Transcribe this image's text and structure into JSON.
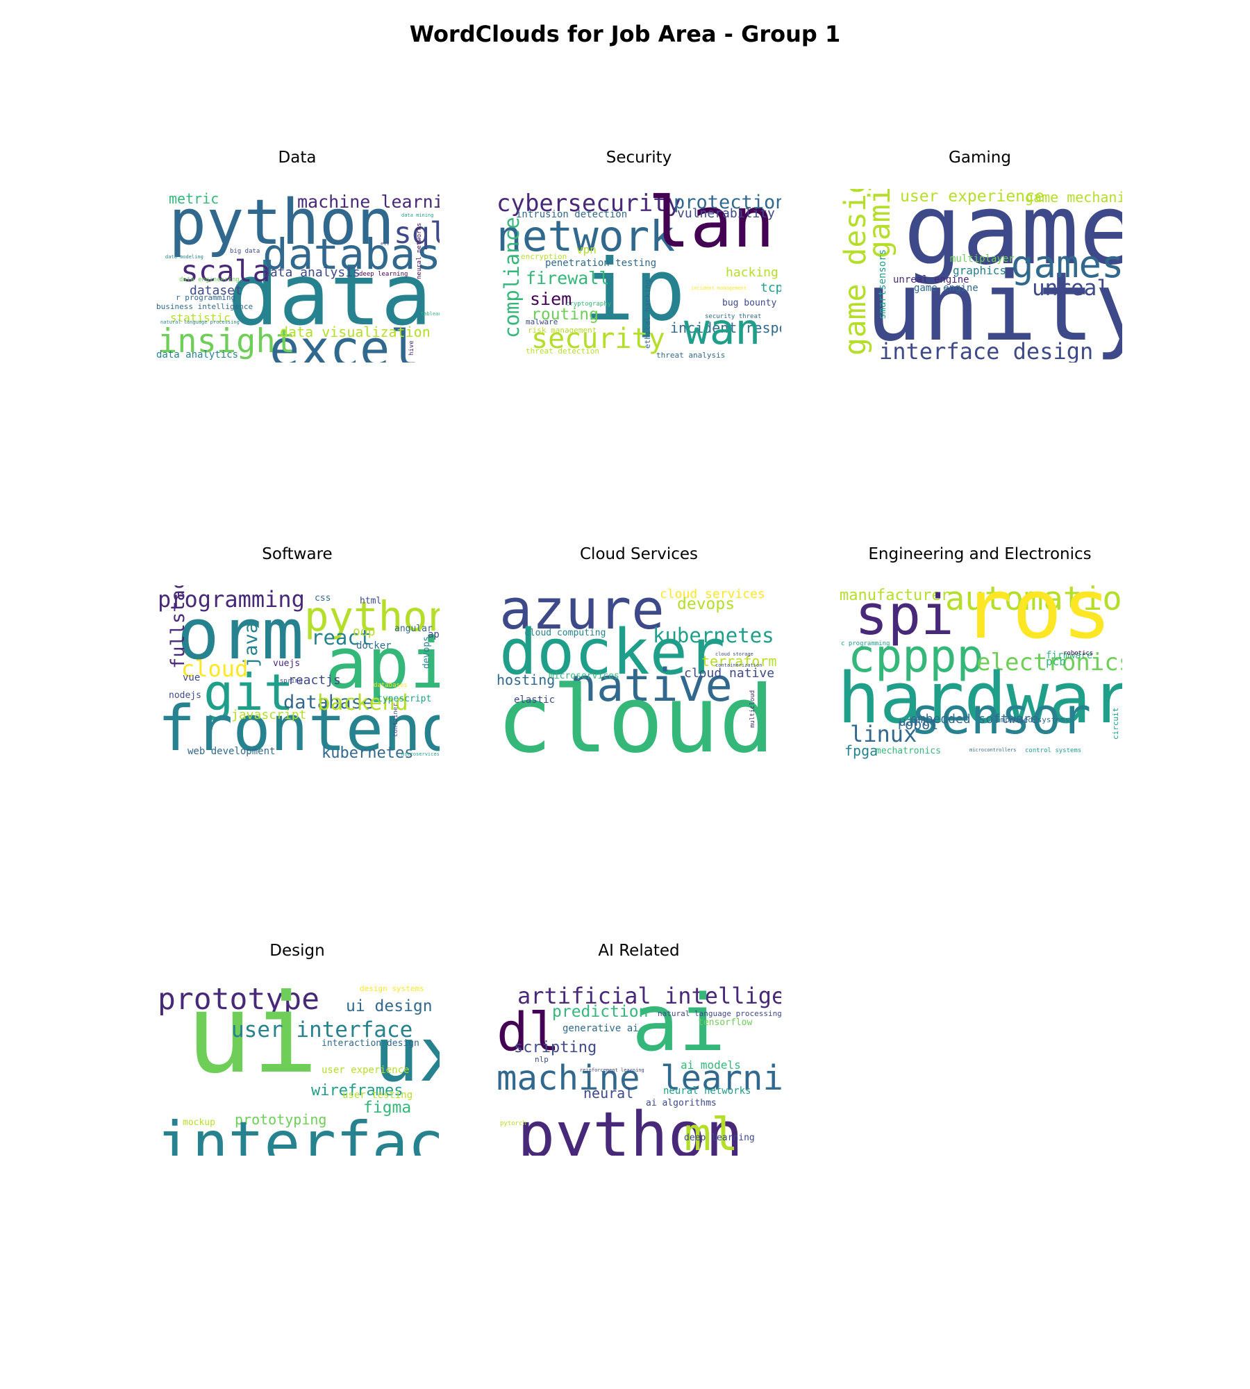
{
  "figure": {
    "title": "WordClouds for Job Area - Group 1"
  },
  "colors": {
    "dark_purple": "#440154",
    "purple": "#482878",
    "indigo": "#3e4989",
    "blue": "#31688e",
    "teal": "#26828e",
    "green_teal": "#1f9e89",
    "green": "#35b779",
    "light_green": "#6ece58",
    "lime": "#b5de2b",
    "yellow": "#fde725"
  },
  "chart_data": [
    {
      "type": "wordcloud",
      "title": "Data",
      "words": [
        {
          "text": "python",
          "color": "#31688e",
          "rel": 0.5
        },
        {
          "text": "data",
          "color": "#26828e",
          "rel": 0.68
        },
        {
          "text": "database",
          "color": "#31688e",
          "rel": 0.34
        },
        {
          "text": "excel",
          "color": "#31688e",
          "rel": 0.4
        },
        {
          "text": "insight",
          "color": "#6ece58",
          "rel": 0.26
        },
        {
          "text": "scala",
          "color": "#482878",
          "rel": 0.24
        },
        {
          "text": "sql",
          "color": "#3e4989",
          "rel": 0.24
        },
        {
          "text": "machine learning",
          "color": "#482878",
          "rel": 0.14
        },
        {
          "text": "metric",
          "color": "#35b779",
          "rel": 0.11
        },
        {
          "text": "data analysis",
          "color": "#3e4989",
          "rel": 0.1
        },
        {
          "text": "dataset",
          "color": "#3e4989",
          "rel": 0.1
        },
        {
          "text": "statistic",
          "color": "#b5de2b",
          "rel": 0.09
        },
        {
          "text": "data visualization",
          "color": "#b5de2b",
          "rel": 0.11
        },
        {
          "text": "business intelligence",
          "color": "#31688e",
          "rel": 0.06
        },
        {
          "text": "data analytics",
          "color": "#26828e",
          "rel": 0.08
        },
        {
          "text": "r programming",
          "color": "#31688e",
          "rel": 0.06
        },
        {
          "text": "big data",
          "color": "#3e4989",
          "rel": 0.05
        },
        {
          "text": "deep learning",
          "color": "#440154",
          "rel": 0.05
        },
        {
          "text": "data engineering",
          "color": "#6ece58",
          "rel": 0.05
        },
        {
          "text": "data modeling",
          "color": "#26828e",
          "rel": 0.04
        },
        {
          "text": "natural language processing",
          "color": "#26828e",
          "rel": 0.04
        },
        {
          "text": "neural networks",
          "color": "#440154",
          "rel": 0.05
        },
        {
          "text": "data mining",
          "color": "#1f9e89",
          "rel": 0.04
        },
        {
          "text": "hive",
          "color": "#482878",
          "rel": 0.05
        },
        {
          "text": "tableau",
          "color": "#35b779",
          "rel": 0.04
        },
        {
          "text": "etl",
          "color": "#3e4989",
          "rel": 0.04
        }
      ]
    },
    {
      "type": "wordcloud",
      "title": "Security",
      "words": [
        {
          "text": "cybersecurity",
          "color": "#482878",
          "rel": 0.19
        },
        {
          "text": "network",
          "color": "#31688e",
          "rel": 0.34
        },
        {
          "text": "lan",
          "color": "#440154",
          "rel": 0.56
        },
        {
          "text": "ip",
          "color": "#26828e",
          "rel": 0.68
        },
        {
          "text": "protection",
          "color": "#31688e",
          "rel": 0.15
        },
        {
          "text": "vulnerability",
          "color": "#3e4989",
          "rel": 0.1
        },
        {
          "text": "intrusion detection",
          "color": "#31688e",
          "rel": 0.08
        },
        {
          "text": "compliance",
          "color": "#35b779",
          "rel": 0.16
        },
        {
          "text": "firewall",
          "color": "#35b779",
          "rel": 0.14
        },
        {
          "text": "penetration testing",
          "color": "#31688e",
          "rel": 0.08
        },
        {
          "text": "encryption",
          "color": "#b5de2b",
          "rel": 0.06
        },
        {
          "text": "vpn",
          "color": "#b5de2b",
          "rel": 0.09
        },
        {
          "text": "hacking",
          "color": "#b5de2b",
          "rel": 0.1
        },
        {
          "text": "tcp",
          "color": "#1f9e89",
          "rel": 0.1
        },
        {
          "text": "siem",
          "color": "#440154",
          "rel": 0.14
        },
        {
          "text": "routing",
          "color": "#6ece58",
          "rel": 0.13
        },
        {
          "text": "malware",
          "color": "#3e4989",
          "rel": 0.06
        },
        {
          "text": "risk management",
          "color": "#b5de2b",
          "rel": 0.06
        },
        {
          "text": "security",
          "color": "#b5de2b",
          "rel": 0.22
        },
        {
          "text": "threat detection",
          "color": "#b5de2b",
          "rel": 0.06
        },
        {
          "text": "cryptography",
          "color": "#35b779",
          "rel": 0.05
        },
        {
          "text": "ethical hacking",
          "color": "#31688e",
          "rel": 0.06
        },
        {
          "text": "incident management",
          "color": "#fde725",
          "rel": 0.04
        },
        {
          "text": "bug bounty",
          "color": "#3e4989",
          "rel": 0.07
        },
        {
          "text": "security threat",
          "color": "#31688e",
          "rel": 0.05
        },
        {
          "text": "incident response",
          "color": "#31688e",
          "rel": 0.11
        },
        {
          "text": "wan",
          "color": "#1f9e89",
          "rel": 0.34
        },
        {
          "text": "threat analysis",
          "color": "#31688e",
          "rel": 0.06
        }
      ]
    },
    {
      "type": "wordcloud",
      "title": "Gaming",
      "words": [
        {
          "text": "game",
          "color": "#3e4989",
          "rel": 0.78
        },
        {
          "text": "unity",
          "color": "#3e4989",
          "rel": 0.76
        },
        {
          "text": "games",
          "color": "#31688e",
          "rel": 0.3
        },
        {
          "text": "unreal",
          "color": "#3e4989",
          "rel": 0.17
        },
        {
          "text": "user experience",
          "color": "#b5de2b",
          "rel": 0.13
        },
        {
          "text": "game mechanics",
          "color": "#b5de2b",
          "rel": 0.11
        },
        {
          "text": "game design",
          "color": "#b5de2b",
          "rel": 0.24
        },
        {
          "text": "gaming",
          "color": "#b5de2b",
          "rel": 0.24
        },
        {
          "text": "smartsensors",
          "color": "#1f9e89",
          "rel": 0.08
        },
        {
          "text": "multiplayer",
          "color": "#6ece58",
          "rel": 0.08
        },
        {
          "text": "graphics",
          "color": "#26828e",
          "rel": 0.09
        },
        {
          "text": "unreal engine",
          "color": "#482878",
          "rel": 0.08
        },
        {
          "text": "game engine",
          "color": "#31688e",
          "rel": 0.08
        },
        {
          "text": "interface design",
          "color": "#3e4989",
          "rel": 0.18
        }
      ]
    },
    {
      "type": "wordcloud",
      "title": "Software",
      "words": [
        {
          "text": "programming",
          "color": "#482878",
          "rel": 0.18
        },
        {
          "text": "orm",
          "color": "#26828e",
          "rel": 0.56
        },
        {
          "text": "python",
          "color": "#b5de2b",
          "rel": 0.33
        },
        {
          "text": "api",
          "color": "#35b779",
          "rel": 0.56
        },
        {
          "text": "git",
          "color": "#1f9e89",
          "rel": 0.4
        },
        {
          "text": "frontend",
          "color": "#26828e",
          "rel": 0.5
        },
        {
          "text": "fullstack",
          "color": "#482878",
          "rel": 0.15
        },
        {
          "text": "java",
          "color": "#26828e",
          "rel": 0.15
        },
        {
          "text": "cloud",
          "color": "#fde725",
          "rel": 0.18
        },
        {
          "text": "react",
          "color": "#26828e",
          "rel": 0.16
        },
        {
          "text": "oop",
          "color": "#b5de2b",
          "rel": 0.1
        },
        {
          "text": "docker",
          "color": "#31688e",
          "rel": 0.08
        },
        {
          "text": "apis",
          "color": "#3e4989",
          "rel": 0.08
        },
        {
          "text": "css",
          "color": "#31688e",
          "rel": 0.07
        },
        {
          "text": "html",
          "color": "#3e4989",
          "rel": 0.07
        },
        {
          "text": "angular",
          "color": "#31688e",
          "rel": 0.07
        },
        {
          "text": "vuejs",
          "color": "#482878",
          "rel": 0.07
        },
        {
          "text": "reactjs",
          "color": "#3e4989",
          "rel": 0.1
        },
        {
          "text": "devops",
          "color": "#26828e",
          "rel": 0.07
        },
        {
          "text": "database",
          "color": "#31688e",
          "rel": 0.15
        },
        {
          "text": "backend",
          "color": "#b5de2b",
          "rel": 0.17
        },
        {
          "text": "javascript",
          "color": "#b5de2b",
          "rel": 0.1
        },
        {
          "text": "typescript",
          "color": "#1f9e89",
          "rel": 0.07
        },
        {
          "text": "vue",
          "color": "#3e4989",
          "rel": 0.08
        },
        {
          "text": "nodejs",
          "color": "#3e4989",
          "rel": 0.07
        },
        {
          "text": "spring",
          "color": "#3e4989",
          "rel": 0.05
        },
        {
          "text": "databases",
          "color": "#fde725",
          "rel": 0.05
        },
        {
          "text": "container",
          "color": "#3e4989",
          "rel": 0.05
        },
        {
          "text": "web development",
          "color": "#31688e",
          "rel": 0.08
        },
        {
          "text": "kubernetes",
          "color": "#31688e",
          "rel": 0.12
        },
        {
          "text": "microservices",
          "color": "#1f9e89",
          "rel": 0.04
        }
      ]
    },
    {
      "type": "wordcloud",
      "title": "Cloud Services",
      "words": [
        {
          "text": "azure",
          "color": "#3e4989",
          "rel": 0.44
        },
        {
          "text": "docker",
          "color": "#1f9e89",
          "rel": 0.5
        },
        {
          "text": "native",
          "color": "#31688e",
          "rel": 0.36
        },
        {
          "text": "cloud",
          "color": "#35b779",
          "rel": 0.74
        },
        {
          "text": "cloud services",
          "color": "#fde725",
          "rel": 0.1
        },
        {
          "text": "devops",
          "color": "#b5de2b",
          "rel": 0.13
        },
        {
          "text": "kubernetes",
          "color": "#1f9e89",
          "rel": 0.16
        },
        {
          "text": "cloud computing",
          "color": "#26828e",
          "rel": 0.07
        },
        {
          "text": "terraform",
          "color": "#b5de2b",
          "rel": 0.11
        },
        {
          "text": "cloud native",
          "color": "#3e4989",
          "rel": 0.1
        },
        {
          "text": "hosting",
          "color": "#31688e",
          "rel": 0.11
        },
        {
          "text": "microservices",
          "color": "#35b779",
          "rel": 0.07
        },
        {
          "text": "elastic",
          "color": "#3e4989",
          "rel": 0.08
        },
        {
          "text": "aws",
          "color": "#35b779",
          "rel": 0.04
        },
        {
          "text": "containerization",
          "color": "#3e4989",
          "rel": 0.04
        },
        {
          "text": "cloud storage",
          "color": "#3e4989",
          "rel": 0.04
        },
        {
          "text": "multicloud",
          "color": "#482878",
          "rel": 0.05
        }
      ]
    },
    {
      "type": "wordcloud",
      "title": "Engineering and Electronics",
      "words": [
        {
          "text": "manufacturer",
          "color": "#b5de2b",
          "rel": 0.12
        },
        {
          "text": "spi",
          "color": "#482878",
          "rel": 0.44
        },
        {
          "text": "automation",
          "color": "#b5de2b",
          "rel": 0.26
        },
        {
          "text": "ros",
          "color": "#fde725",
          "rel": 0.66
        },
        {
          "text": "cpppp",
          "color": "#35b779",
          "rel": 0.36
        },
        {
          "text": "electronics",
          "color": "#6ece58",
          "rel": 0.19
        },
        {
          "text": "hardware",
          "color": "#1f9e89",
          "rel": 0.56
        },
        {
          "text": "sensor",
          "color": "#26828e",
          "rel": 0.4
        },
        {
          "text": "linux",
          "color": "#31688e",
          "rel": 0.18
        },
        {
          "text": "uart",
          "color": "#31688e",
          "rel": 0.1
        },
        {
          "text": "embedded systems",
          "color": "#31688e",
          "rel": 0.06
        },
        {
          "text": "embedded software",
          "color": "#31688e",
          "rel": 0.1
        },
        {
          "text": "robot",
          "color": "#31688e",
          "rel": 0.11
        },
        {
          "text": "firmware",
          "color": "#35b779",
          "rel": 0.08
        },
        {
          "text": "pcb",
          "color": "#35b779",
          "rel": 0.09
        },
        {
          "text": "robotics",
          "color": "#440154",
          "rel": 0.05
        },
        {
          "text": "c programming",
          "color": "#1f9e89",
          "rel": 0.05
        },
        {
          "text": "fpga",
          "color": "#26828e",
          "rel": 0.11
        },
        {
          "text": "mechatronics",
          "color": "#35b779",
          "rel": 0.07
        },
        {
          "text": "circuit",
          "color": "#1f9e89",
          "rel": 0.06
        },
        {
          "text": "microcontrollers",
          "color": "#31688e",
          "rel": 0.04
        },
        {
          "text": "control systems",
          "color": "#1f9e89",
          "rel": 0.05
        }
      ]
    },
    {
      "type": "wordcloud",
      "title": "Design",
      "words": [
        {
          "text": "prototype",
          "color": "#482878",
          "rel": 0.24
        },
        {
          "text": "ui",
          "color": "#6ece58",
          "rel": 0.88
        },
        {
          "text": "ux",
          "color": "#26828e",
          "rel": 0.6
        },
        {
          "text": "ui design",
          "color": "#31688e",
          "rel": 0.13
        },
        {
          "text": "user interface",
          "color": "#26828e",
          "rel": 0.17
        },
        {
          "text": "interaction design",
          "color": "#31688e",
          "rel": 0.07
        },
        {
          "text": "design systems",
          "color": "#fde725",
          "rel": 0.06
        },
        {
          "text": "user experience",
          "color": "#b5de2b",
          "rel": 0.08
        },
        {
          "text": "wireframes",
          "color": "#1f9e89",
          "rel": 0.12
        },
        {
          "text": "user testing",
          "color": "#b5de2b",
          "rel": 0.08
        },
        {
          "text": "prototyping",
          "color": "#6ece58",
          "rel": 0.11
        },
        {
          "text": "figma",
          "color": "#35b779",
          "rel": 0.13
        },
        {
          "text": "mockup",
          "color": "#b5de2b",
          "rel": 0.07
        },
        {
          "text": "interface",
          "color": "#26828e",
          "rel": 0.48
        }
      ]
    },
    {
      "type": "wordcloud",
      "title": "AI Related",
      "words": [
        {
          "text": "artificial intelligence",
          "color": "#482878",
          "rel": 0.18
        },
        {
          "text": "dl",
          "color": "#440154",
          "rel": 0.42
        },
        {
          "text": "ai",
          "color": "#35b779",
          "rel": 0.62
        },
        {
          "text": "prediction",
          "color": "#35b779",
          "rel": 0.13
        },
        {
          "text": "natural language processing",
          "color": "#3e4989",
          "rel": 0.06
        },
        {
          "text": "tensorflow",
          "color": "#6ece58",
          "rel": 0.07
        },
        {
          "text": "generative ai",
          "color": "#31688e",
          "rel": 0.08
        },
        {
          "text": "scripting",
          "color": "#3e4989",
          "rel": 0.12
        },
        {
          "text": "nlp",
          "color": "#3e4989",
          "rel": 0.06
        },
        {
          "text": "machine learning",
          "color": "#31688e",
          "rel": 0.27
        },
        {
          "text": "ai models",
          "color": "#35b779",
          "rel": 0.09
        },
        {
          "text": "neural",
          "color": "#3e4989",
          "rel": 0.11
        },
        {
          "text": "neural networks",
          "color": "#1f9e89",
          "rel": 0.08
        },
        {
          "text": "ai algorithms",
          "color": "#3e4989",
          "rel": 0.07
        },
        {
          "text": "python",
          "color": "#482878",
          "rel": 0.5
        },
        {
          "text": "ml",
          "color": "#b5de2b",
          "rel": 0.36
        },
        {
          "text": "deep learning",
          "color": "#3e4989",
          "rel": 0.07
        },
        {
          "text": "pytorch",
          "color": "#b5de2b",
          "rel": 0.05
        },
        {
          "text": "reinforcement learning",
          "color": "#3e4989",
          "rel": 0.04
        }
      ]
    }
  ]
}
